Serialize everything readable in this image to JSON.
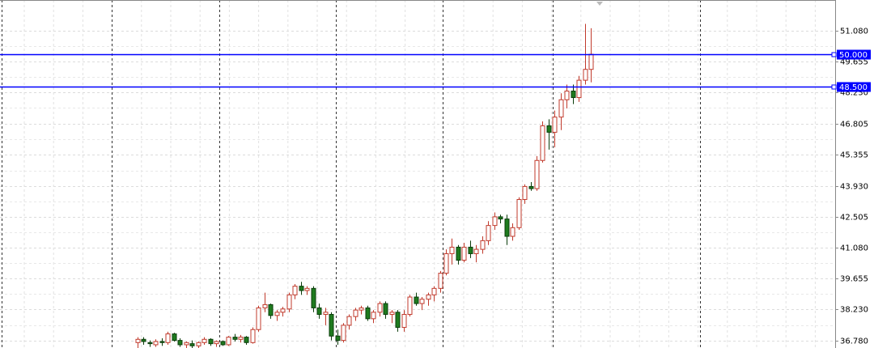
{
  "chart_data": {
    "type": "candlestick",
    "ylim": [
      36.45,
      52.5
    ],
    "yticks": [
      {
        "value": 51.08,
        "label": "51.080"
      },
      {
        "value": 49.655,
        "label": "49.655"
      },
      {
        "value": 48.23,
        "label": "48.230"
      },
      {
        "value": 46.805,
        "label": "46.805"
      },
      {
        "value": 45.355,
        "label": "45.355"
      },
      {
        "value": 43.93,
        "label": "43.930"
      },
      {
        "value": 42.505,
        "label": "42.505"
      },
      {
        "value": 41.08,
        "label": "41.080"
      },
      {
        "value": 39.655,
        "label": "39.655"
      },
      {
        "value": 38.23,
        "label": "38.230"
      },
      {
        "value": 36.78,
        "label": "36.780"
      }
    ],
    "grid": true,
    "bull_fill": "#ffffff",
    "bull_stroke": "#c0392b",
    "bear_fill": "#1e7b1e",
    "bear_stroke": "#0b3d0b",
    "hlines": [
      {
        "value": 50.0,
        "label": "50.000",
        "color": "#0000ff"
      },
      {
        "value": 48.5,
        "label": "48.500",
        "color": "#0000ff"
      }
    ],
    "open": [
      36.7,
      36.85,
      36.7,
      36.6,
      36.75,
      36.7,
      37.1,
      36.8,
      36.6,
      36.65,
      36.55,
      36.7,
      36.85,
      36.65,
      36.75,
      36.6,
      36.95,
      36.85,
      36.95,
      36.7,
      37.3,
      38.3,
      38.45,
      37.95,
      38.1,
      38.25,
      38.9,
      39.3,
      39.1,
      39.2,
      38.3,
      38.0,
      38.0,
      37.0,
      36.8,
      37.5,
      37.9,
      38.2,
      38.3,
      37.8,
      38.1,
      38.5,
      38.0,
      38.1,
      37.4,
      38.0,
      38.8,
      38.5,
      38.7,
      38.9,
      39.2,
      39.9,
      40.8,
      41.1,
      40.5,
      41.1,
      40.8,
      41.0,
      41.4,
      42.1,
      42.5,
      42.4,
      41.6,
      42.0,
      43.3,
      43.9,
      43.8,
      45.1,
      46.7,
      46.4,
      47.1,
      47.9,
      48.3,
      48.0,
      48.8,
      49.3
    ],
    "high": [
      36.95,
      36.95,
      36.8,
      36.85,
      36.9,
      37.2,
      37.15,
      36.9,
      36.75,
      36.8,
      36.75,
      36.95,
      36.9,
      36.8,
      36.8,
      37.0,
      37.1,
      37.05,
      37.0,
      37.4,
      38.4,
      39.0,
      38.5,
      38.2,
      38.35,
      39.0,
      39.4,
      39.5,
      39.3,
      39.3,
      38.5,
      38.3,
      38.1,
      37.3,
      37.6,
      38.0,
      38.3,
      38.4,
      38.4,
      38.2,
      38.6,
      38.6,
      38.2,
      38.2,
      38.2,
      38.9,
      39.0,
      38.8,
      39.0,
      39.3,
      40.0,
      41.0,
      41.5,
      41.2,
      41.3,
      41.4,
      41.2,
      41.6,
      42.3,
      42.7,
      42.6,
      42.6,
      42.2,
      43.4,
      44.0,
      44.1,
      45.3,
      46.9,
      47.0,
      47.4,
      48.2,
      48.6,
      48.6,
      49.0,
      51.4,
      51.2
    ],
    "low": [
      36.45,
      36.6,
      36.5,
      36.5,
      36.55,
      36.6,
      36.75,
      36.5,
      36.45,
      36.45,
      36.45,
      36.6,
      36.55,
      36.5,
      36.55,
      36.55,
      36.75,
      36.7,
      36.6,
      36.65,
      37.2,
      38.1,
      37.8,
      37.7,
      37.9,
      38.1,
      38.7,
      38.9,
      38.9,
      38.1,
      37.8,
      37.5,
      36.8,
      36.6,
      36.7,
      37.3,
      37.7,
      38.0,
      37.7,
      37.6,
      37.9,
      37.8,
      37.6,
      37.2,
      37.2,
      37.9,
      38.4,
      38.2,
      38.4,
      38.6,
      39.0,
      39.8,
      40.3,
      40.3,
      40.4,
      40.6,
      40.4,
      40.8,
      41.2,
      41.9,
      42.2,
      41.2,
      41.4,
      41.9,
      43.1,
      43.7,
      43.7,
      45.0,
      45.6,
      45.7,
      46.5,
      47.5,
      47.7,
      47.8,
      48.6,
      48.7
    ],
    "close": [
      36.85,
      36.75,
      36.65,
      36.75,
      36.7,
      37.1,
      36.8,
      36.6,
      36.7,
      36.55,
      36.7,
      36.85,
      36.65,
      36.75,
      36.6,
      36.95,
      36.85,
      36.95,
      36.7,
      37.3,
      38.3,
      38.45,
      37.95,
      38.1,
      38.25,
      38.9,
      39.3,
      39.1,
      39.2,
      38.3,
      38.0,
      38.1,
      37.0,
      36.8,
      37.5,
      37.9,
      38.2,
      38.3,
      37.8,
      38.1,
      38.5,
      38.0,
      38.1,
      37.4,
      38.0,
      38.8,
      38.5,
      38.7,
      38.9,
      39.2,
      39.9,
      40.8,
      41.1,
      40.5,
      41.1,
      40.8,
      41.0,
      41.4,
      42.1,
      42.5,
      42.4,
      41.6,
      42.0,
      43.3,
      43.9,
      43.8,
      45.1,
      46.7,
      46.4,
      47.1,
      47.9,
      48.3,
      48.0,
      48.8,
      49.3,
      50.0
    ]
  }
}
